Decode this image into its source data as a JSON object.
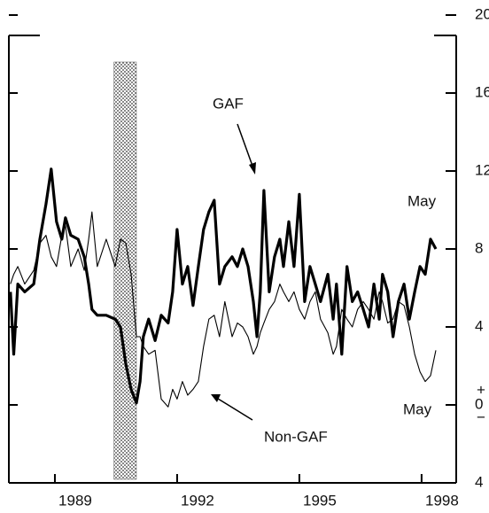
{
  "chart_data": {
    "type": "line",
    "annotations": [
      "GAF",
      "Non-GAF",
      "May",
      "May"
    ],
    "zero_signs": [
      "+",
      "−"
    ],
    "shaded_period": [
      1990.45,
      1991.0
    ],
    "xlim": [
      1987.87,
      1998.85
    ],
    "xticks": [
      1989,
      1992,
      1995,
      1998
    ],
    "ylim": [
      -4,
      20
    ],
    "yticks": [
      {
        "value": -4,
        "label": "4"
      },
      0,
      4,
      8,
      12,
      16,
      20
    ],
    "x": [
      1987.91,
      1987.99,
      1988.09,
      1988.26,
      1988.48,
      1988.63,
      1988.78,
      1988.91,
      1989.04,
      1989.17,
      1989.26,
      1989.39,
      1989.57,
      1989.72,
      1989.83,
      1989.91,
      1990.04,
      1990.26,
      1990.48,
      1990.61,
      1990.74,
      1990.87,
      1991.0,
      1991.09,
      1991.17,
      1991.3,
      1991.46,
      1991.61,
      1991.78,
      1991.89,
      1992.0,
      1992.13,
      1992.26,
      1992.39,
      1992.52,
      1992.65,
      1992.78,
      1992.91,
      1993.04,
      1993.17,
      1993.35,
      1993.48,
      1993.61,
      1993.74,
      1993.87,
      1993.96,
      1994.04,
      1994.13,
      1994.26,
      1994.39,
      1994.52,
      1994.61,
      1994.74,
      1994.87,
      1995.0,
      1995.13,
      1995.26,
      1995.39,
      1995.52,
      1995.7,
      1995.83,
      1995.91,
      1996.04,
      1996.17,
      1996.3,
      1996.43,
      1996.57,
      1996.7,
      1996.83,
      1996.96,
      1997.04,
      1997.17,
      1997.3,
      1997.43,
      1997.57,
      1997.7,
      1997.83,
      1997.96,
      1998.09,
      1998.22,
      1998.35
    ],
    "series": [
      {
        "name": "GAF",
        "color": "#000000",
        "width": 3.2,
        "values": [
          5.8,
          2.6,
          6.2,
          5.8,
          6.2,
          8.5,
          10.3,
          12.1,
          9.4,
          8.5,
          9.6,
          8.7,
          8.5,
          7.6,
          6.2,
          4.9,
          4.6,
          4.6,
          4.4,
          4.0,
          2.1,
          0.8,
          0.1,
          1.2,
          3.5,
          4.4,
          3.3,
          4.6,
          4.2,
          5.8,
          9.0,
          6.2,
          7.1,
          5.1,
          7.1,
          9.0,
          9.9,
          10.5,
          6.2,
          7.1,
          7.6,
          7.1,
          8.0,
          7.1,
          5.3,
          3.5,
          5.8,
          11.0,
          5.8,
          7.6,
          8.5,
          7.1,
          9.4,
          7.1,
          10.8,
          5.3,
          7.1,
          6.2,
          5.3,
          6.7,
          4.4,
          6.2,
          2.6,
          7.1,
          5.3,
          5.8,
          4.9,
          4.0,
          6.2,
          4.4,
          6.7,
          5.8,
          3.5,
          5.3,
          6.2,
          4.4,
          5.8,
          7.1,
          6.7,
          8.5,
          8.0
        ]
      },
      {
        "name": "Non-GAF",
        "color": "#000000",
        "width": 1.1,
        "values": [
          6.2,
          6.7,
          7.1,
          6.2,
          6.9,
          8.3,
          8.7,
          7.6,
          7.1,
          8.7,
          9.2,
          7.1,
          8.0,
          6.9,
          8.5,
          9.9,
          7.1,
          8.5,
          7.1,
          8.5,
          8.3,
          6.7,
          3.5,
          3.5,
          3.0,
          2.6,
          2.8,
          0.3,
          -0.1,
          0.8,
          0.3,
          1.2,
          0.5,
          0.8,
          1.2,
          3.0,
          4.4,
          4.6,
          3.5,
          5.3,
          3.5,
          4.2,
          4.0,
          3.5,
          2.6,
          3.0,
          3.7,
          4.2,
          4.9,
          5.3,
          6.2,
          5.8,
          5.3,
          5.8,
          4.9,
          4.4,
          5.3,
          5.8,
          4.4,
          3.7,
          2.6,
          3.0,
          4.9,
          4.4,
          4.0,
          4.9,
          5.3,
          4.9,
          4.4,
          5.8,
          5.3,
          4.2,
          4.4,
          5.3,
          5.1,
          4.0,
          2.6,
          1.7,
          1.2,
          1.5,
          2.8
        ]
      }
    ]
  }
}
